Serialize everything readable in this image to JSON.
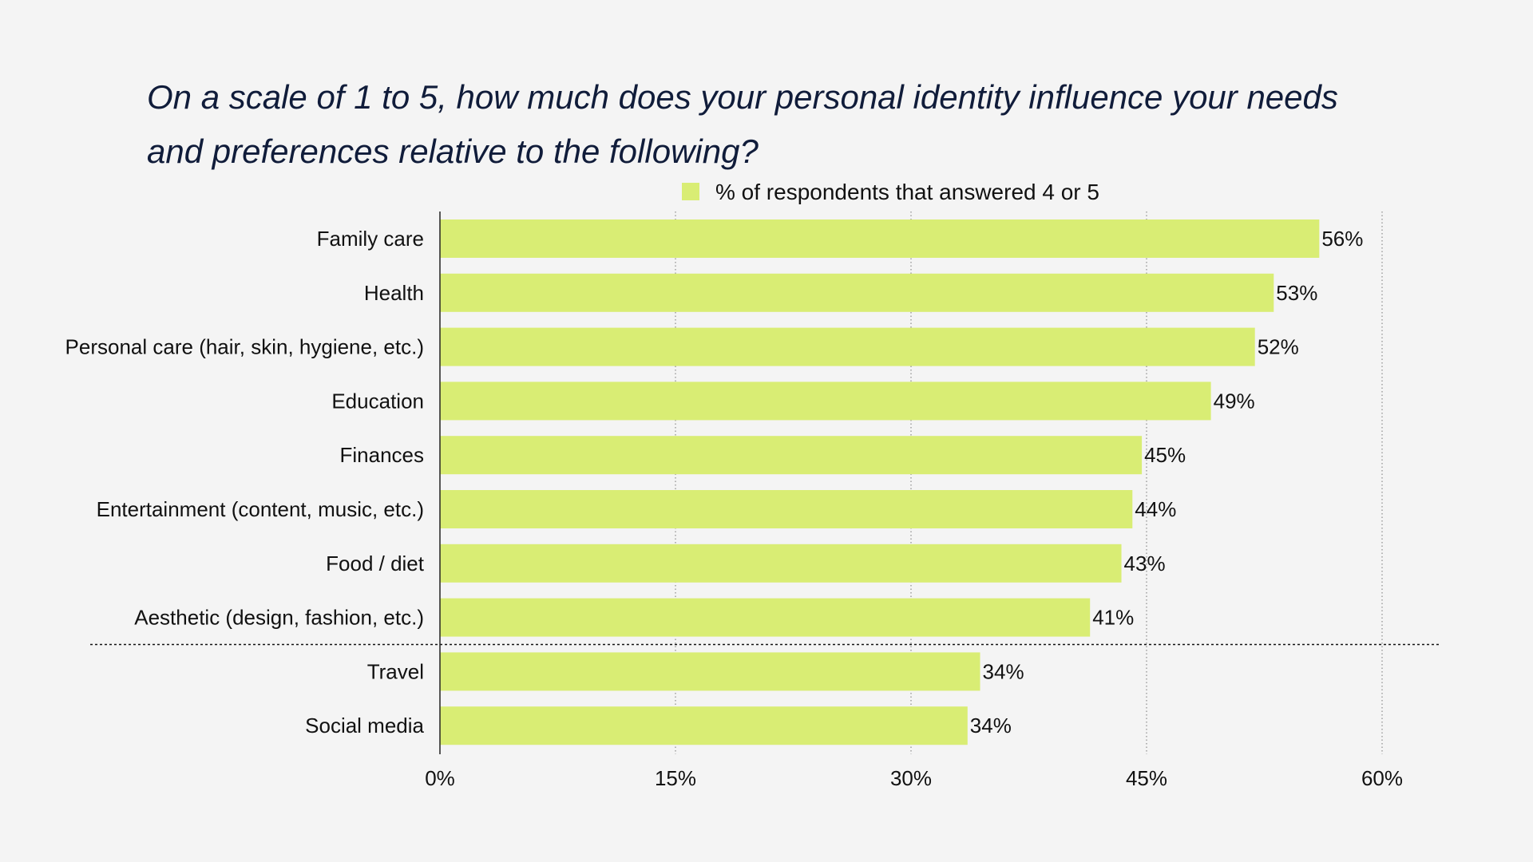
{
  "chart_data": {
    "type": "bar",
    "orientation": "horizontal",
    "title": "On a scale of 1 to 5, how much does your personal identity influence your needs and preferences relative to the following?",
    "categories": [
      "Family care",
      "Health",
      "Personal care (hair, skin, hygiene, etc.)",
      "Education",
      "Finances",
      "Entertainment (content, music, etc.)",
      "Food / diet",
      "Aesthetic (design, fashion, etc.)",
      "Travel",
      "Social media"
    ],
    "series": [
      {
        "name": "% of respondents that answered 4 or 5",
        "values": [
          56,
          53.1,
          51.9,
          49.1,
          44.7,
          44.1,
          43.4,
          41.4,
          34.4,
          33.6
        ],
        "labels": [
          "56%",
          "53%",
          "52%",
          "49%",
          "45%",
          "44%",
          "43%",
          "41%",
          "34%",
          "34%"
        ],
        "color": "#d9ed74"
      }
    ],
    "xlim": [
      0,
      60
    ],
    "xticks": [
      0,
      15,
      30,
      45,
      60
    ],
    "xtick_labels": [
      "0%",
      "15%",
      "30%",
      "45%",
      "60%"
    ],
    "grid": "vertical dotted",
    "separator_after_category": "Aesthetic (design, fashion, etc.)",
    "legend_position": "top-center"
  },
  "colors": {
    "background": "#f4f4f4",
    "bar": "#d9ed74",
    "title": "#101c3a",
    "text": "#111111",
    "axis": "#222222",
    "grid": "#8a8a8a"
  }
}
